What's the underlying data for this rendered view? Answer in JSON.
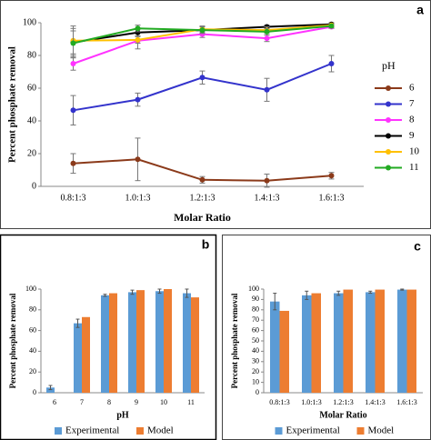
{
  "chart_data": [
    {
      "type": "line",
      "panel": "a",
      "ylabel": "Percent phosphate removal",
      "xlabel": "Molar Ratio",
      "categories": [
        "0.8:1:3",
        "1.0:1:3",
        "1.2:1:3",
        "1.4:1:3",
        "1.6:1:3"
      ],
      "ylim": [
        0,
        100
      ],
      "yticks": [
        0,
        20,
        40,
        60,
        80,
        100
      ],
      "legend_title": "pH",
      "legend": "right",
      "series": [
        {
          "name": "6",
          "color": "#8b3a1a",
          "values": [
            14,
            16.5,
            4,
            3.5,
            6.5
          ],
          "errors": [
            6,
            13,
            2,
            4,
            2
          ]
        },
        {
          "name": "7",
          "color": "#3333cc",
          "values": [
            46.5,
            53,
            66.5,
            59,
            75
          ],
          "errors": [
            9,
            4,
            4,
            7,
            5
          ]
        },
        {
          "name": "8",
          "color": "#ff33ff",
          "values": [
            75,
            89,
            93,
            90.5,
            97.5
          ],
          "errors": [
            4,
            5,
            2,
            2,
            1
          ]
        },
        {
          "name": "9",
          "color": "#000000",
          "values": [
            88,
            94,
            95.5,
            97.5,
            99
          ],
          "errors": [
            7,
            2,
            2,
            1,
            1
          ]
        },
        {
          "name": "10",
          "color": "#ffc000",
          "values": [
            89,
            89.5,
            96,
            95.5,
            98.5
          ],
          "errors": [
            9,
            2,
            2,
            2,
            1
          ]
        },
        {
          "name": "11",
          "color": "#22aa22",
          "values": [
            87.5,
            96.5,
            95.5,
            94.5,
            98
          ],
          "errors": [
            9,
            2,
            2,
            2,
            1
          ]
        }
      ]
    },
    {
      "type": "bar",
      "panel": "b",
      "ylabel": "Percent phosphate removal",
      "xlabel": "pH",
      "categories": [
        "6",
        "7",
        "8",
        "9",
        "10",
        "11"
      ],
      "ylim": [
        0,
        100
      ],
      "yticks": [
        0,
        20,
        40,
        60,
        80,
        100
      ],
      "legend": "bottom",
      "series": [
        {
          "name": "Experimental",
          "color": "#5b9bd5",
          "values": [
            5,
            67,
            94,
            97,
            98,
            96
          ],
          "errors": [
            2,
            4,
            1,
            2,
            2,
            4
          ]
        },
        {
          "name": "Model",
          "color": "#ed7d31",
          "values": [
            null,
            73,
            96,
            99,
            100,
            92
          ]
        }
      ]
    },
    {
      "type": "bar",
      "panel": "c",
      "ylabel": "Percent phosphate removal",
      "xlabel": "Molar Ratio",
      "categories": [
        "0.8:1:3",
        "1.0:1:3",
        "1.2:1:3",
        "1.4:1:3",
        "1.6:1:3"
      ],
      "ylim": [
        0,
        100
      ],
      "yticks": [
        0,
        10,
        20,
        30,
        40,
        50,
        60,
        70,
        80,
        90,
        100
      ],
      "legend": "bottom",
      "series": [
        {
          "name": "Experimental",
          "color": "#5b9bd5",
          "values": [
            88,
            94,
            96,
            97,
            99.5
          ],
          "errors": [
            8,
            4,
            2,
            1,
            0.5
          ]
        },
        {
          "name": "Model",
          "color": "#ed7d31",
          "values": [
            79,
            96,
            99.5,
            99.5,
            99.5
          ]
        }
      ]
    }
  ]
}
